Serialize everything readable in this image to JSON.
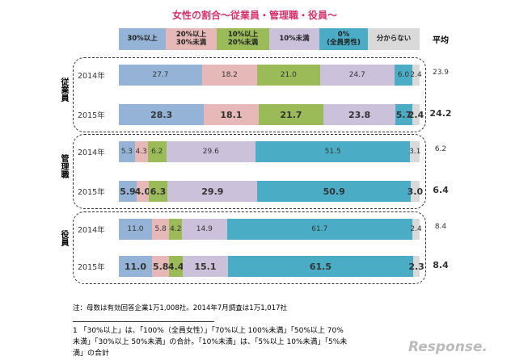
{
  "chart_data": {
    "type": "stacked-bar-horizontal",
    "title": "女性の割合～従業員・管理職・役員～",
    "average_header": "平均",
    "groups": [
      "従業員",
      "管理職",
      "役員"
    ],
    "categories": [
      "2014年",
      "2015年",
      "2014年",
      "2015年",
      "2014年",
      "2015年"
    ],
    "xlim": [
      0,
      100
    ],
    "series": [
      {
        "name": "30%以上",
        "color": "#95b3d7",
        "values": [
          27.7,
          28.3,
          5.3,
          5.9,
          11.0,
          11.0
        ],
        "value_labels": [
          "27.7",
          "28.3",
          "5.3",
          "5.9",
          "11.0",
          "11.0"
        ]
      },
      {
        "name": "20%以上\n30%未満",
        "color": "#e6b9b8",
        "values": [
          18.2,
          18.1,
          4.3,
          4.0,
          5.8,
          5.8
        ],
        "value_labels": [
          "18.2",
          "18.1",
          "4.3",
          "4.0",
          "5.8",
          "5.8"
        ]
      },
      {
        "name": "10%以上\n20%未満",
        "color": "#9bbb59",
        "values": [
          21.0,
          21.7,
          6.2,
          6.3,
          4.2,
          4.4
        ],
        "value_labels": [
          "21.0",
          "21.7",
          "6.2",
          "6.3",
          "4.2",
          "4.4"
        ]
      },
      {
        "name": "10%未満",
        "color": "#ccc1da",
        "values": [
          24.7,
          23.8,
          29.6,
          29.9,
          14.9,
          15.1
        ],
        "value_labels": [
          "24.7",
          "23.8",
          "29.6",
          "29.9",
          "14.9",
          "15.1"
        ]
      },
      {
        "name": "0%\n(全員男性)",
        "color": "#4bacc6",
        "values": [
          6.0,
          5.7,
          51.5,
          50.9,
          61.7,
          61.5
        ],
        "value_labels": [
          "6.0",
          "5.7",
          "51.5",
          "50.9",
          "61.7",
          "61.5"
        ]
      },
      {
        "name": "分からない",
        "color": "#d9d9d9",
        "values": [
          2.4,
          2.4,
          3.1,
          3.0,
          2.4,
          2.3
        ],
        "value_labels": [
          "2.4",
          "2.4",
          "3.1",
          "3.0",
          "2.4",
          "2.3"
        ]
      }
    ],
    "averages": [
      23.9,
      24.2,
      6.2,
      6.4,
      8.4,
      8.4
    ],
    "average_labels": [
      "23.9",
      "24.2",
      "6.2",
      "6.4",
      "8.4",
      "8.4"
    ],
    "note": "注：母数は有効回答企業1万1,008社。2014年7月調査は1万1,017社",
    "footnote": "1 「30%以上」は、「100%（全員女性）」「70%以上 100%未満」「50%以上 70%未満」「30%以上 50%未満」の合計。「10%未満」は、「5%以上 10%未満」「5%未満」の合計",
    "watermark": "Response."
  }
}
